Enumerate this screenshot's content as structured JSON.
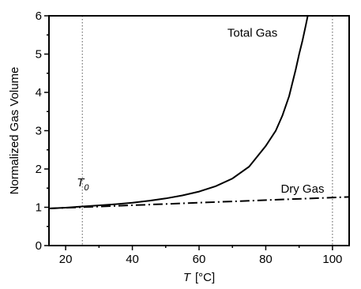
{
  "chart_data": {
    "type": "line",
    "ylabel": "Normalized Gas Volume",
    "xlabel": {
      "symbol": "T",
      "unit": "[°C]"
    },
    "xlim": [
      15,
      105
    ],
    "ylim": [
      0,
      6
    ],
    "x_ticks": [
      20,
      40,
      60,
      80,
      100
    ],
    "y_ticks": [
      0,
      1,
      2,
      3,
      4,
      5,
      6
    ],
    "grid": false,
    "series": [
      {
        "name": "Total Gas",
        "style": "solid",
        "color": "#000000",
        "x": [
          15,
          20,
          25,
          30,
          35,
          40,
          45,
          50,
          55,
          60,
          65,
          70,
          75,
          80,
          83,
          85,
          87,
          89,
          90,
          91,
          92,
          92.6
        ],
        "y": [
          0.97,
          0.99,
          1.02,
          1.05,
          1.08,
          1.12,
          1.17,
          1.23,
          1.31,
          1.41,
          1.55,
          1.75,
          2.06,
          2.6,
          3.0,
          3.4,
          3.9,
          4.6,
          5.0,
          5.35,
          5.75,
          6.0
        ]
      },
      {
        "name": "Dry Gas",
        "style": "dash-dot",
        "color": "#000000",
        "x": [
          15,
          105
        ],
        "y": [
          0.97,
          1.27
        ]
      }
    ],
    "reference_lines": [
      {
        "label": "T",
        "subscript": "0",
        "x": 25,
        "style": "dotted"
      },
      {
        "label": "",
        "x": 100,
        "style": "dotted"
      }
    ]
  }
}
